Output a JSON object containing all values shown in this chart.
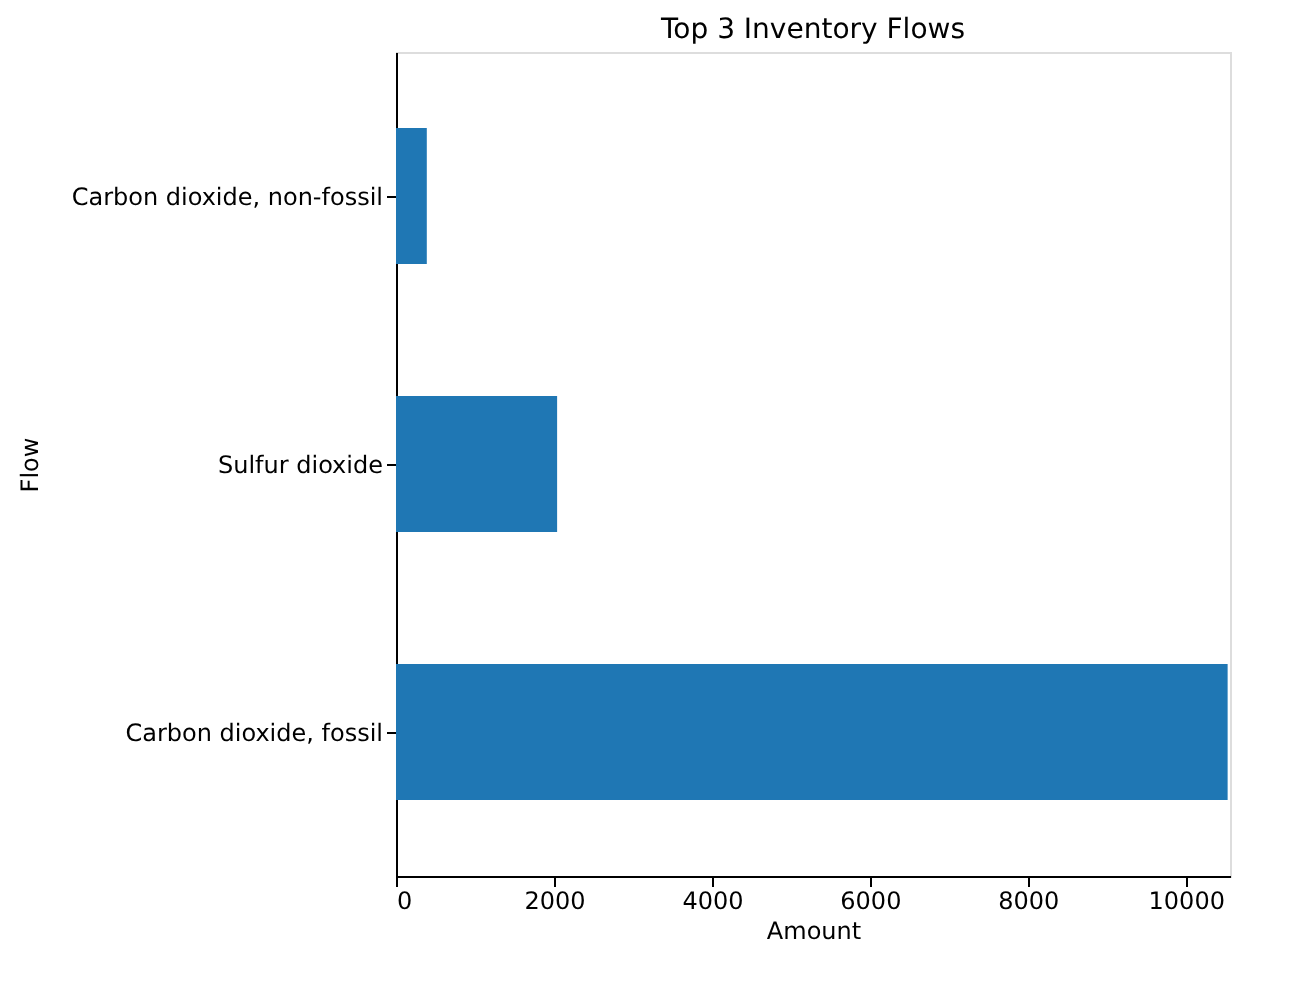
{
  "chart_data": {
    "type": "bar",
    "orientation": "horizontal",
    "title": "Top 3 Inventory Flows",
    "xlabel": "Amount",
    "ylabel": "Flow",
    "categories": [
      "Carbon dioxide, non-fossil",
      "Sulfur dioxide",
      "Carbon dioxide, fossil"
    ],
    "values": [
      390,
      2040,
      10530
    ],
    "color": "#1f77b4",
    "xlim": [
      0,
      10560
    ],
    "xticks": [
      0,
      2000,
      4000,
      6000,
      8000,
      10000
    ],
    "grid": false
  }
}
